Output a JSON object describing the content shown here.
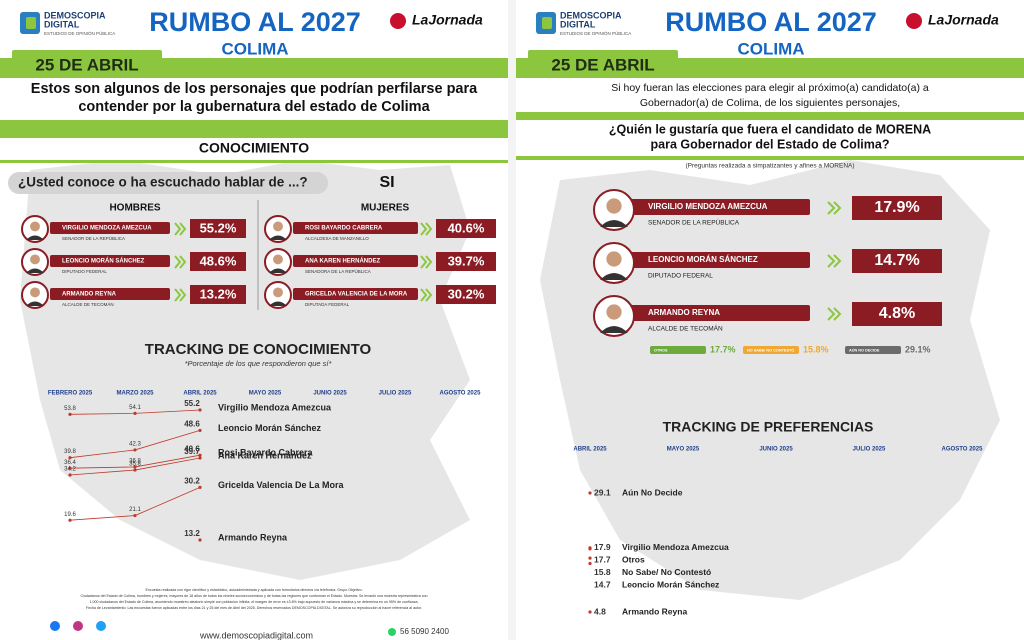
{
  "left": {
    "brand_lines": [
      "DEMOSCOPIA",
      "DIGITAL"
    ],
    "brand_tagline": "ESTUDIOS DE OPINIÓN PÚBLICA",
    "title": "RUMBO AL 2027",
    "state": "COLIMA",
    "newspaper": "LaJornada",
    "date": "25 DE ABRIL",
    "intro_lines": [
      "Estos son algunos de los personajes que podrían perfilarse para",
      "contender por la gubernatura del estado de Colima"
    ],
    "section": "CONOCIMIENTO",
    "question": "¿Usted conoce o ha escuchado hablar de ...?",
    "answer": "SI",
    "groups": [
      {
        "label": "HOMBRES",
        "people": [
          {
            "name": "VIRGILIO MENDOZA AMEZCUA",
            "role": "SENADOR DE LA REPÚBLICA",
            "value": "55.2%"
          },
          {
            "name": "LEONCIO MORÁN SÁNCHEZ",
            "role": "DIPUTADO FEDERAL",
            "value": "48.6%"
          },
          {
            "name": "ARMANDO REYNA",
            "role": "ALCALDE DE TECOMÁN",
            "value": "13.2%"
          }
        ]
      },
      {
        "label": "MUJERES",
        "people": [
          {
            "name": "ROSI BAYARDO CABRERA",
            "role": "ALCALDESA DE MANZANILLO",
            "value": "40.6%"
          },
          {
            "name": "ANA KAREN HERNÁNDEZ",
            "role": "SENADORA DE LA REPÚBLICA",
            "value": "39.7%"
          },
          {
            "name": "GRICELDA VALENCIA DE LA MORA",
            "role": "DIPUTADA FEDERAL",
            "value": "30.2%"
          }
        ]
      }
    ],
    "tracking": {
      "title": "TRACKING DE CONOCIMIENTO",
      "subtitle": "*Porcentaje de los que respondieron que sí*",
      "months": [
        "FEBRERO 2025",
        "MARZO 2025",
        "ABRIL 2025",
        "MAYO 2025",
        "JUNIO 2025",
        "JULIO 2025",
        "AGOSTO 2025"
      ],
      "series": [
        {
          "name": "Virgilio Mendoza Amezcua",
          "values": [
            53.8,
            54.1,
            55.2
          ]
        },
        {
          "name": "Leoncio Morán Sánchez",
          "values": [
            39.8,
            42.3,
            48.6
          ]
        },
        {
          "name": "Rosi Bayardo Cabrera",
          "values": [
            36.4,
            36.8,
            40.6
          ]
        },
        {
          "name": "Ana Karen Hernández",
          "values": [
            34.2,
            35.8,
            39.7
          ]
        },
        {
          "name": "Gricelda Valencia De La Mora",
          "values": [
            19.6,
            21.1,
            30.2
          ]
        },
        {
          "name": "Armando Reyna",
          "values": [
            null,
            null,
            13.2
          ]
        }
      ]
    },
    "footer": {
      "note_lines": [
        "Encuesta realizada con rigor científico y estadístico, autoadministrada y aplicada con formularios directos vía telefónica. Grupo Objetivo:",
        "Ciudadanos del Estado de Colima, hombres y mujeres, mayores de 18 años de todos los niveles socioeconómicos y de todas las regiones que conforman el Estado. Muestra: Se levantó una muestra representativa con",
        "1,000 ciudadanos del Estado de Colima, asumiendo muestreo aleatorio simple con población infinita, el margen de error es ±3.8% bajo supuesto de varianza máxima y se determina en un 95% de confianza.",
        "Fecha de Levantamiento: Las encuestas fueron aplicadas entre los días 21 y 25 del mes de Abril del 2025. Derechos reservados DEMOSCOPIA DIGITAL. Se autoriza su reproducción al hacer referencia al autor."
      ],
      "web": "www.demoscopiadigital.com",
      "phone": "56 5090 2400"
    }
  },
  "right": {
    "brand_lines": [
      "DEMOSCOPIA",
      "DIGITAL"
    ],
    "brand_tagline": "ESTUDIOS DE OPINIÓN PÚBLICA",
    "title": "RUMBO AL 2027",
    "state": "COLIMA",
    "newspaper": "LaJornada",
    "date": "25 DE ABRIL",
    "intro_lines": [
      "Si hoy fueran las elecciones para elegir al próximo(a) candidato(a) a",
      "Gobernador(a) de Colima, de los siguientes personajes,"
    ],
    "question_lines": [
      "¿Quién le gustaría que fuera el candidato de MORENA",
      "para Gobernador del Estado de Colima?"
    ],
    "note": "(Preguntas realizada a simpatizantes y afines a MORENA)",
    "people": [
      {
        "name": "VIRGILIO MENDOZA AMEZCUA",
        "role": "SENADOR DE LA REPÚBLICA",
        "value": "17.9%"
      },
      {
        "name": "LEONCIO MORÁN SÁNCHEZ",
        "role": "DIPUTADO FEDERAL",
        "value": "14.7%"
      },
      {
        "name": "ARMANDO REYNA",
        "role": "ALCALDE DE TECOMÁN",
        "value": "4.8%"
      }
    ],
    "others": [
      {
        "label": "OTROS",
        "value": "17.7%",
        "color": "#6dab3c"
      },
      {
        "label": "NO SABE/ NO CONTESTÓ",
        "value": "15.8%",
        "color": "#f0a830"
      },
      {
        "label": "AÚN NO DECIDE",
        "value": "29.1%",
        "color": "#6b6b6b"
      }
    ],
    "tracking": {
      "title": "TRACKING DE PREFERENCIAS",
      "months": [
        "ABRIL 2025",
        "MAYO 2025",
        "JUNIO 2025",
        "JULIO 2025",
        "AGOSTO 2025"
      ],
      "series": [
        {
          "name": "Aún No Decide",
          "values": [
            29.1
          ]
        },
        {
          "name": "Virgilio Mendoza Amezcua",
          "values": [
            17.9
          ]
        },
        {
          "name": "Otros",
          "values": [
            17.7
          ]
        },
        {
          "name": "No Sabe/ No Contestó",
          "values": [
            15.8
          ]
        },
        {
          "name": "Leoncio Morán Sánchez",
          "values": [
            14.7
          ]
        },
        {
          "name": "Armando Reyna",
          "values": [
            4.8
          ]
        }
      ]
    }
  }
}
